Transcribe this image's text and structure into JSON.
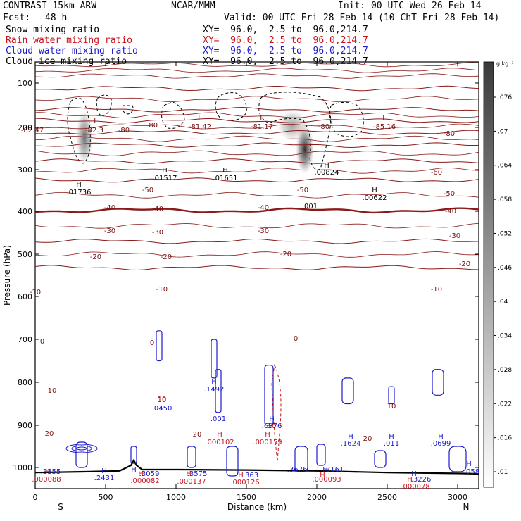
{
  "header": {
    "model": "CONTRAST 15km ARW",
    "center": "NCAR/MMM",
    "init": "Init: 00 UTC Wed 26 Feb 14",
    "fcst_label": "Fcst:",
    "fcst_value": "48 h",
    "valid": "Valid: 00 UTC Fri 28 Feb 14 (10 ChT Fri 28 Feb 14)",
    "fields": [
      {
        "name": "Snow mixing ratio",
        "xy": "XY=  96.0,  2.5 to  96.0,214.7",
        "color": "#000000"
      },
      {
        "name": "Rain water mixing ratio",
        "xy": "XY=  96.0,  2.5 to  96.0,214.7",
        "color": "#c8141e"
      },
      {
        "name": "Cloud water mixing ratio",
        "xy": "XY=  96.0,  2.5 to  96.0,214.7",
        "color": "#1a1ad0"
      },
      {
        "name": "Cloud ice mixing ratio",
        "xy": "XY=  96.0,  2.5 to  96.0,214.7",
        "color": "#000000"
      }
    ]
  },
  "chart_data": {
    "type": "cross-section contour",
    "xlabel": "Distance (km)",
    "ylabel": "Pressure (hPa)",
    "xlim": [
      0,
      3150
    ],
    "ylim": [
      1050,
      60
    ],
    "x_ticks": [
      0,
      500,
      1000,
      1500,
      2000,
      2500,
      3000
    ],
    "y_ticks": [
      100,
      200,
      300,
      400,
      500,
      600,
      700,
      800,
      900,
      1000
    ],
    "end_labels": {
      "left": "S",
      "right": "N"
    },
    "colorbar": {
      "unit": "g kg⁻¹",
      "ticks": [
        ".076",
        ".07",
        ".064",
        ".058",
        ".052",
        ".046",
        ".04",
        ".034",
        ".028",
        ".022",
        ".016",
        ".01"
      ]
    },
    "temperature_isotherms": [
      {
        "label": "-80",
        "p": 112
      },
      {
        "label": "-60",
        "p": 160
      },
      {
        "label": "-50",
        "p": 185
      },
      {
        "label": "-40",
        "p": 212
      },
      {
        "label": "-30",
        "p": 242
      },
      {
        "label": "-20",
        "p": 280
      },
      {
        "label": "-10",
        "p": 325
      },
      {
        "label": "0",
        "p": 398
      },
      {
        "label": "10",
        "p": 470
      },
      {
        "label": "20",
        "p": 532
      }
    ],
    "labels": [
      {
        "text": "L",
        "x": 430,
        "p": 87,
        "color": "#7a1010"
      },
      {
        "text": "L",
        "x": 1170,
        "p": 83,
        "color": "#7a1010"
      },
      {
        "text": "L",
        "x": 1610,
        "p": 83,
        "color": "#7a1010"
      },
      {
        "text": "L",
        "x": 2480,
        "p": 83,
        "color": "#7a1010"
      },
      {
        "text": "-82.47",
        "x": -20,
        "p": 100,
        "color": "#7a1010"
      },
      {
        "text": "-82.3",
        "x": 420,
        "p": 100,
        "color": "#7a1010"
      },
      {
        "text": "-80",
        "x": 630,
        "p": 100,
        "color": "#7a1010"
      },
      {
        "text": "-80",
        "x": 830,
        "p": 93,
        "color": "#7a1010"
      },
      {
        "text": "-81.42",
        "x": 1170,
        "p": 95,
        "color": "#7a1010"
      },
      {
        "text": "-81.17",
        "x": 1610,
        "p": 95,
        "color": "#7a1010"
      },
      {
        "text": "-80",
        "x": 2050,
        "p": 95,
        "color": "#7a1010"
      },
      {
        "text": "-85.16",
        "x": 2480,
        "p": 95,
        "color": "#7a1010"
      },
      {
        "text": "-80",
        "x": 2940,
        "p": 105,
        "color": "#7a1010"
      },
      {
        "text": "-60",
        "x": 2850,
        "p": 160,
        "color": "#7a1010"
      },
      {
        "text": "-50",
        "x": 800,
        "p": 185,
        "color": "#7a1010"
      },
      {
        "text": "-50",
        "x": 1900,
        "p": 185,
        "color": "#7a1010"
      },
      {
        "text": "-50",
        "x": 2940,
        "p": 190,
        "color": "#7a1010"
      },
      {
        "text": "-40",
        "x": 530,
        "p": 210,
        "color": "#7a1010"
      },
      {
        "text": "-40",
        "x": 870,
        "p": 212,
        "color": "#7a1010"
      },
      {
        "text": "-40",
        "x": 1620,
        "p": 210,
        "color": "#7a1010"
      },
      {
        "text": "-40",
        "x": 2950,
        "p": 215,
        "color": "#7a1010"
      },
      {
        "text": "-30",
        "x": 530,
        "p": 243,
        "color": "#7a1010"
      },
      {
        "text": "-30",
        "x": 870,
        "p": 245,
        "color": "#7a1010"
      },
      {
        "text": "-30",
        "x": 1620,
        "p": 243,
        "color": "#7a1010"
      },
      {
        "text": "-30",
        "x": 2980,
        "p": 250,
        "color": "#7a1010"
      },
      {
        "text": "-20",
        "x": 430,
        "p": 280,
        "color": "#7a1010"
      },
      {
        "text": "-20",
        "x": 930,
        "p": 280,
        "color": "#7a1010"
      },
      {
        "text": "-20",
        "x": 1780,
        "p": 276,
        "color": "#7a1010"
      },
      {
        "text": "-20",
        "x": 3050,
        "p": 290,
        "color": "#7a1010"
      },
      {
        "text": "-10",
        "x": 0,
        "p": 330,
        "color": "#7a1010"
      },
      {
        "text": "-10",
        "x": 900,
        "p": 326,
        "color": "#7a1010"
      },
      {
        "text": "-10",
        "x": 2850,
        "p": 326,
        "color": "#7a1010"
      },
      {
        "text": "0",
        "x": 50,
        "p": 400,
        "color": "#7a1010"
      },
      {
        "text": "0",
        "x": 830,
        "p": 402,
        "color": "#7a1010"
      },
      {
        "text": "0",
        "x": 1850,
        "p": 396,
        "color": "#7a1010"
      },
      {
        "text": "10",
        "x": 120,
        "p": 470,
        "color": "#7a1010"
      },
      {
        "text": "10",
        "x": 900,
        "p": 483,
        "color": "#7a1010"
      },
      {
        "text": "10",
        "x": 1680,
        "p": 520,
        "color": "#7a1010"
      },
      {
        "text": "10",
        "x": 2530,
        "p": 492,
        "color": "#7a1010"
      },
      {
        "text": "20",
        "x": 100,
        "p": 531,
        "color": "#7a1010"
      },
      {
        "text": "20",
        "x": 1150,
        "p": 532,
        "color": "#7a1010"
      },
      {
        "text": "20",
        "x": 2360,
        "p": 538,
        "color": "#7a1010"
      },
      {
        "text": "H",
        "x": 310,
        "p": 177,
        "color": "#000000"
      },
      {
        "text": ".01736",
        "x": 310,
        "p": 188,
        "color": "#000000"
      },
      {
        "text": "H",
        "x": 920,
        "p": 157,
        "color": "#000000"
      },
      {
        "text": ".01517",
        "x": 920,
        "p": 168,
        "color": "#000000"
      },
      {
        "text": "H",
        "x": 1350,
        "p": 157,
        "color": "#000000"
      },
      {
        "text": ".01651",
        "x": 1350,
        "p": 168,
        "color": "#000000"
      },
      {
        "text": "H",
        "x": 2070,
        "p": 150,
        "color": "#000000"
      },
      {
        "text": ".00824",
        "x": 2070,
        "p": 160,
        "color": "#000000"
      },
      {
        "text": "H",
        "x": 2410,
        "p": 185,
        "color": "#000000"
      },
      {
        "text": ".00622",
        "x": 2410,
        "p": 196,
        "color": "#000000"
      },
      {
        "text": ".001",
        "x": 1950,
        "p": 208,
        "color": "#000000"
      },
      {
        "text": "H",
        "x": 1270,
        "p": 457,
        "color": "#1a1ad0"
      },
      {
        "text": ".1492",
        "x": 1270,
        "p": 468,
        "color": "#1a1ad0"
      },
      {
        "text": ".0450",
        "x": 900,
        "p": 495,
        "color": "#1a1ad0"
      },
      {
        "text": "10",
        "x": 900,
        "p": 482,
        "color": "#c8141e"
      },
      {
        "text": ".001",
        "x": 1300,
        "p": 510,
        "color": "#1a1ad0"
      },
      {
        "text": "H",
        "x": 1680,
        "p": 510,
        "color": "#1a1ad0"
      },
      {
        "text": ".6976",
        "x": 1680,
        "p": 520,
        "color": "#1a1ad0"
      },
      {
        "text": "H",
        "x": 1310,
        "p": 532,
        "color": "#c8141e"
      },
      {
        "text": ".000102",
        "x": 1310,
        "p": 543,
        "color": "#c8141e"
      },
      {
        "text": "H",
        "x": 1650,
        "p": 532,
        "color": "#c8141e"
      },
      {
        "text": ".000159",
        "x": 1650,
        "p": 543,
        "color": "#c8141e"
      },
      {
        "text": "H",
        "x": 2240,
        "p": 535,
        "color": "#1a1ad0"
      },
      {
        "text": ".1624",
        "x": 2240,
        "p": 545,
        "color": "#1a1ad0"
      },
      {
        "text": "H",
        "x": 2530,
        "p": 535,
        "color": "#1a1ad0"
      },
      {
        "text": ".011",
        "x": 2530,
        "p": 545,
        "color": "#1a1ad0"
      },
      {
        "text": "H",
        "x": 2880,
        "p": 535,
        "color": "#1a1ad0"
      },
      {
        "text": ".0699",
        "x": 2880,
        "p": 545,
        "color": "#1a1ad0"
      },
      {
        "text": "H",
        "x": 90,
        "p": 585,
        "color": "#c8141e"
      },
      {
        "text": ".3355",
        "x": 110,
        "p": 585,
        "color": "#1a1ad0"
      },
      {
        "text": ".000088",
        "x": 80,
        "p": 596,
        "color": "#c8141e"
      },
      {
        "text": "H",
        "x": 490,
        "p": 584,
        "color": "#1a1ad0"
      },
      {
        "text": ".2431",
        "x": 490,
        "p": 594,
        "color": "#1a1ad0"
      },
      {
        "text": "H",
        "x": 700,
        "p": 582,
        "color": "#1a1ad0"
      },
      {
        "text": "H",
        "x": 750,
        "p": 588,
        "color": "#c8141e"
      },
      {
        "text": ".3059",
        "x": 810,
        "p": 588,
        "color": "#1a1ad0"
      },
      {
        "text": ".000082",
        "x": 780,
        "p": 598,
        "color": "#c8141e"
      },
      {
        "text": "H",
        "x": 1090,
        "p": 588,
        "color": "#c8141e"
      },
      {
        "text": ".3575",
        "x": 1150,
        "p": 588,
        "color": "#1a1ad0"
      },
      {
        "text": ".000137",
        "x": 1110,
        "p": 599,
        "color": "#c8141e"
      },
      {
        "text": "H",
        "x": 1460,
        "p": 590,
        "color": "#c8141e"
      },
      {
        "text": ".363",
        "x": 1530,
        "p": 590,
        "color": "#1a1ad0"
      },
      {
        "text": ".000126",
        "x": 1490,
        "p": 600,
        "color": "#c8141e"
      },
      {
        "text": ".3626",
        "x": 1860,
        "p": 582,
        "color": "#1a1ad0"
      },
      {
        "text": "H",
        "x": 2060,
        "p": 582,
        "color": "#1a1ad0"
      },
      {
        "text": "H",
        "x": 2040,
        "p": 590,
        "color": "#c8141e"
      },
      {
        "text": ".3161",
        "x": 2120,
        "p": 582,
        "color": "#1a1ad0"
      },
      {
        "text": ".000093",
        "x": 2070,
        "p": 596,
        "color": "#c8141e"
      },
      {
        "text": "H",
        "x": 2690,
        "p": 588,
        "color": "#1a1ad0"
      },
      {
        "text": "H",
        "x": 2660,
        "p": 596,
        "color": "#c8141e"
      },
      {
        "text": ".3226",
        "x": 2740,
        "p": 596,
        "color": "#1a1ad0"
      },
      {
        "text": ".000078",
        "x": 2700,
        "p": 606,
        "color": "#c8141e"
      },
      {
        "text": "H",
        "x": 3080,
        "p": 574,
        "color": "#1a1ad0"
      },
      {
        "text": ".058",
        "x": 3100,
        "p": 585,
        "color": "#1a1ad0"
      }
    ]
  }
}
